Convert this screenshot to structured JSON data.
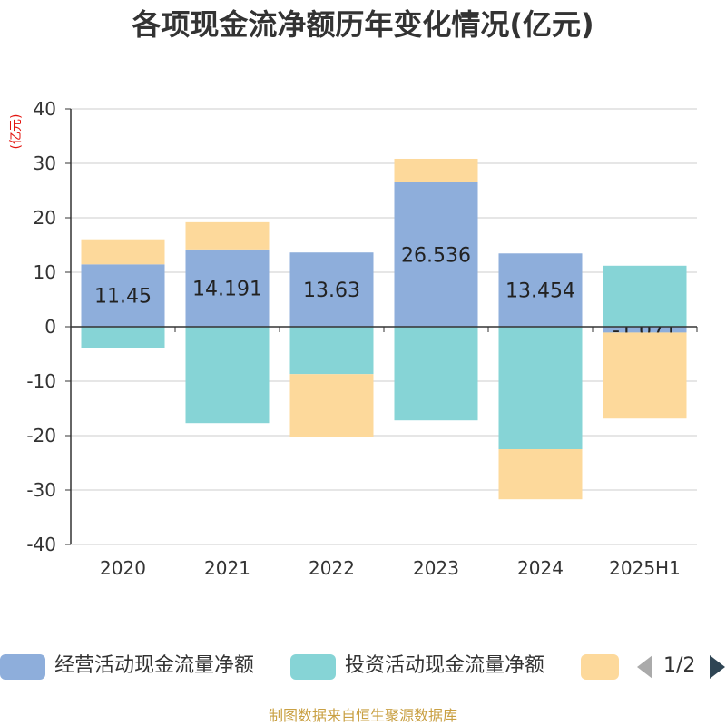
{
  "chart_data": {
    "type": "bar",
    "stacked": true,
    "title": "各项现金流净额历年变化情况(亿元)",
    "ylabel": "(亿元)",
    "xlabel": "",
    "categories": [
      "2020",
      "2021",
      "2022",
      "2023",
      "2024",
      "2025H1"
    ],
    "ylim": [
      -40,
      40
    ],
    "yticks": [
      40,
      30,
      20,
      10,
      0,
      -10,
      -20,
      -30,
      -40
    ],
    "grid": true,
    "legend": "bottom",
    "series": [
      {
        "name": "经营活动现金流量净额",
        "color": "#8eaedb",
        "show_labels": true,
        "values": [
          11.45,
          14.191,
          13.63,
          26.536,
          13.454,
          -1.071
        ]
      },
      {
        "name": "投资活动现金流量净额",
        "color": "#86d4d6",
        "show_labels": false,
        "values": [
          -4.0,
          -17.7,
          -8.7,
          -17.2,
          -22.5,
          11.2
        ]
      },
      {
        "color": "#fdd99b",
        "show_labels": false,
        "values": [
          4.6,
          5.0,
          -11.5,
          4.3,
          -9.2,
          -15.8
        ]
      }
    ]
  },
  "legend": {
    "page": "1/2"
  },
  "footer": "制图数据来自恒生聚源数据库"
}
